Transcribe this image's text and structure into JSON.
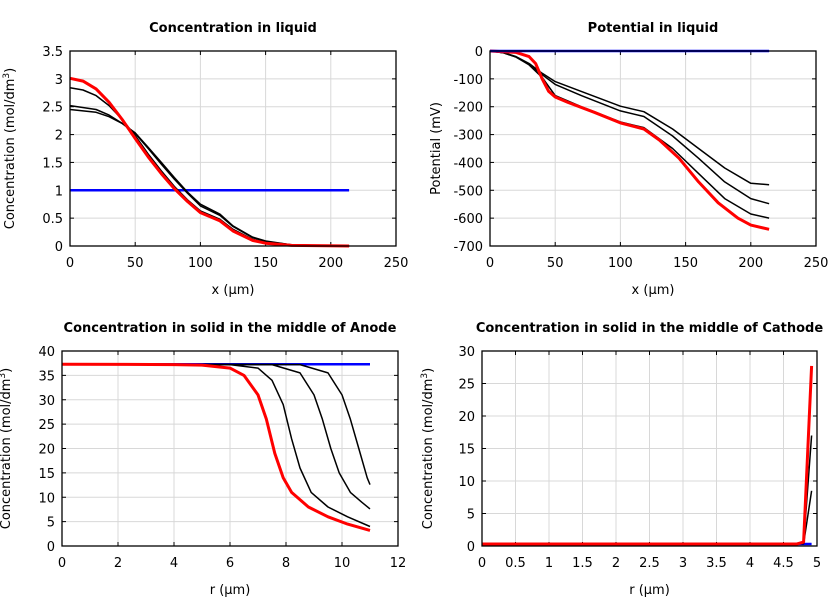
{
  "chart_data": [
    {
      "type": "line",
      "title": "Concentration in liquid",
      "xlabel": "x (µm)",
      "ylabel": "Concentration (mol/dm",
      "ylabel_sup": "3",
      "ylabel_end": ")",
      "xlim": [
        0,
        250
      ],
      "ylim": [
        0,
        3.5
      ],
      "xticks": [
        "0",
        "50",
        "100",
        "150",
        "200",
        "250"
      ],
      "yticks": [
        "0",
        "0.5",
        "1",
        "1.5",
        "2",
        "2.5",
        "3",
        "3.5"
      ],
      "grid": true,
      "series": [
        {
          "color": "#0000ff",
          "width": 2.5,
          "points": [
            [
              0,
              1
            ],
            [
              214,
              1
            ]
          ]
        },
        {
          "color": "#000000",
          "width": 1.5,
          "points": [
            [
              0,
              2.84
            ],
            [
              10,
              2.8
            ],
            [
              20,
              2.7
            ],
            [
              30,
              2.52
            ],
            [
              40,
              2.27
            ],
            [
              50,
              1.98
            ],
            [
              60,
              1.65
            ],
            [
              70,
              1.35
            ],
            [
              80,
              1.07
            ],
            [
              90,
              0.83
            ],
            [
              100,
              0.63
            ],
            [
              115,
              0.48
            ],
            [
              125,
              0.3
            ],
            [
              140,
              0.12
            ],
            [
              150,
              0.06
            ],
            [
              170,
              0.01
            ],
            [
              214,
              0
            ]
          ]
        },
        {
          "color": "#000000",
          "width": 1.5,
          "points": [
            [
              0,
              2.52
            ],
            [
              20,
              2.45
            ],
            [
              30,
              2.35
            ],
            [
              40,
              2.2
            ],
            [
              50,
              2.02
            ],
            [
              60,
              1.75
            ],
            [
              70,
              1.47
            ],
            [
              80,
              1.2
            ],
            [
              90,
              0.95
            ],
            [
              100,
              0.72
            ],
            [
              115,
              0.55
            ],
            [
              125,
              0.35
            ],
            [
              140,
              0.15
            ],
            [
              150,
              0.08
            ],
            [
              170,
              0.02
            ],
            [
              214,
              0
            ]
          ]
        },
        {
          "color": "#000000",
          "width": 1.5,
          "points": [
            [
              0,
              2.45
            ],
            [
              20,
              2.4
            ],
            [
              30,
              2.32
            ],
            [
              40,
              2.2
            ],
            [
              50,
              2.03
            ],
            [
              60,
              1.77
            ],
            [
              70,
              1.5
            ],
            [
              80,
              1.23
            ],
            [
              90,
              0.97
            ],
            [
              100,
              0.75
            ],
            [
              115,
              0.57
            ],
            [
              125,
              0.36
            ],
            [
              140,
              0.16
            ],
            [
              150,
              0.09
            ],
            [
              170,
              0.02
            ],
            [
              214,
              0
            ]
          ]
        },
        {
          "color": "#ff0000",
          "width": 3,
          "points": [
            [
              0,
              3.01
            ],
            [
              10,
              2.96
            ],
            [
              20,
              2.82
            ],
            [
              30,
              2.58
            ],
            [
              40,
              2.27
            ],
            [
              50,
              1.93
            ],
            [
              60,
              1.6
            ],
            [
              70,
              1.3
            ],
            [
              80,
              1.03
            ],
            [
              90,
              0.8
            ],
            [
              100,
              0.6
            ],
            [
              115,
              0.45
            ],
            [
              125,
              0.27
            ],
            [
              140,
              0.1
            ],
            [
              150,
              0.05
            ],
            [
              170,
              0.01
            ],
            [
              214,
              0
            ]
          ]
        }
      ]
    },
    {
      "type": "line",
      "title": "Potential in liquid",
      "xlabel": "x (µm)",
      "ylabel": "Potential (mV)",
      "xlim": [
        0,
        250
      ],
      "ylim": [
        -700,
        0
      ],
      "xticks": [
        "0",
        "50",
        "100",
        "150",
        "200",
        "250"
      ],
      "yticks": [
        "-700",
        "-600",
        "-500",
        "-400",
        "-300",
        "-200",
        "-100",
        "0"
      ],
      "grid": true,
      "series": [
        {
          "color": "#000000",
          "width": 1.5,
          "points": [
            [
              0,
              0
            ],
            [
              10,
              -5
            ],
            [
              20,
              -20
            ],
            [
              30,
              -45
            ],
            [
              40,
              -80
            ],
            [
              50,
              -110
            ],
            [
              70,
              -145
            ],
            [
              100,
              -198
            ],
            [
              118,
              -218
            ],
            [
              140,
              -280
            ],
            [
              160,
              -350
            ],
            [
              180,
              -420
            ],
            [
              200,
              -475
            ],
            [
              214,
              -480
            ]
          ]
        },
        {
          "color": "#000000",
          "width": 1.5,
          "points": [
            [
              0,
              0
            ],
            [
              10,
              -6
            ],
            [
              20,
              -22
            ],
            [
              30,
              -48
            ],
            [
              40,
              -85
            ],
            [
              50,
              -120
            ],
            [
              70,
              -160
            ],
            [
              100,
              -215
            ],
            [
              118,
              -235
            ],
            [
              140,
              -305
            ],
            [
              160,
              -385
            ],
            [
              180,
              -470
            ],
            [
              200,
              -530
            ],
            [
              214,
              -548
            ]
          ]
        },
        {
          "color": "#000000",
          "width": 1.5,
          "points": [
            [
              0,
              0
            ],
            [
              10,
              -6
            ],
            [
              20,
              -22
            ],
            [
              30,
              -50
            ],
            [
              40,
              -95
            ],
            [
              50,
              -160
            ],
            [
              70,
              -200
            ],
            [
              100,
              -255
            ],
            [
              118,
              -275
            ],
            [
              140,
              -350
            ],
            [
              160,
              -440
            ],
            [
              180,
              -530
            ],
            [
              200,
              -585
            ],
            [
              214,
              -600
            ]
          ]
        },
        {
          "color": "#ff0000",
          "width": 3,
          "points": [
            [
              0,
              0
            ],
            [
              20,
              -5
            ],
            [
              30,
              -20
            ],
            [
              35,
              -45
            ],
            [
              40,
              -100
            ],
            [
              45,
              -145
            ],
            [
              50,
              -165
            ],
            [
              60,
              -185
            ],
            [
              80,
              -220
            ],
            [
              100,
              -258
            ],
            [
              118,
              -280
            ],
            [
              130,
              -320
            ],
            [
              145,
              -385
            ],
            [
              160,
              -470
            ],
            [
              175,
              -545
            ],
            [
              190,
              -600
            ],
            [
              200,
              -625
            ],
            [
              214,
              -640
            ]
          ]
        },
        {
          "color": "#0000ff",
          "width": 2.5,
          "points": [
            [
              0,
              0
            ],
            [
              214,
              0
            ]
          ]
        }
      ]
    },
    {
      "type": "line",
      "title": "Concentration in solid in the middle of Anode",
      "xlabel": "r (µm)",
      "ylabel": "Concentration (mol/dm",
      "ylabel_sup": "3",
      "ylabel_end": ")",
      "xlim": [
        0,
        12
      ],
      "ylim": [
        0,
        40
      ],
      "xticks": [
        "0",
        "2",
        "4",
        "6",
        "8",
        "10",
        "12"
      ],
      "yticks": [
        "0",
        "5",
        "10",
        "15",
        "20",
        "25",
        "30",
        "35",
        "40"
      ],
      "grid": true,
      "series": [
        {
          "color": "#0000ff",
          "width": 2.5,
          "points": [
            [
              0,
              37.3
            ],
            [
              11,
              37.3
            ]
          ]
        },
        {
          "color": "#000000",
          "width": 1.5,
          "points": [
            [
              0,
              37.3
            ],
            [
              6,
              37.2
            ],
            [
              7,
              36.5
            ],
            [
              7.5,
              34
            ],
            [
              7.9,
              29
            ],
            [
              8.2,
              22
            ],
            [
              8.5,
              16
            ],
            [
              8.9,
              11
            ],
            [
              9.5,
              8
            ],
            [
              10.2,
              6
            ],
            [
              11,
              4
            ]
          ]
        },
        {
          "color": "#000000",
          "width": 1.5,
          "points": [
            [
              0,
              37.3
            ],
            [
              7.5,
              37.2
            ],
            [
              8.5,
              35.5
            ],
            [
              9,
              31
            ],
            [
              9.3,
              26
            ],
            [
              9.6,
              20
            ],
            [
              9.9,
              15
            ],
            [
              10.3,
              11
            ],
            [
              10.7,
              9
            ],
            [
              11,
              7.6
            ]
          ]
        },
        {
          "color": "#000000",
          "width": 1.5,
          "points": [
            [
              0,
              37.3
            ],
            [
              8.5,
              37.2
            ],
            [
              9.5,
              35.5
            ],
            [
              10,
              31
            ],
            [
              10.3,
              26
            ],
            [
              10.6,
              20
            ],
            [
              10.9,
              14
            ],
            [
              11,
              12.6
            ]
          ]
        },
        {
          "color": "#ff0000",
          "width": 3,
          "points": [
            [
              0,
              37.3
            ],
            [
              4,
              37.2
            ],
            [
              5,
              37.1
            ],
            [
              6,
              36.5
            ],
            [
              6.5,
              35
            ],
            [
              7,
              31
            ],
            [
              7.3,
              26
            ],
            [
              7.6,
              19
            ],
            [
              7.9,
              14
            ],
            [
              8.2,
              11
            ],
            [
              8.8,
              8
            ],
            [
              9.5,
              6
            ],
            [
              10.2,
              4.5
            ],
            [
              11,
              3.2
            ]
          ]
        }
      ]
    },
    {
      "type": "line",
      "title": "Concentration in solid in the middle of Cathode",
      "xlabel": "r (µm)",
      "ylabel": "Concentration (mol/dm",
      "ylabel_sup": "3",
      "ylabel_end": ")",
      "xlim": [
        0,
        5
      ],
      "ylim": [
        0,
        30
      ],
      "xticks": [
        "0",
        "0.5",
        "1",
        "1.5",
        "2",
        "2.5",
        "3",
        "3.5",
        "4",
        "4.5",
        "5"
      ],
      "yticks": [
        "0",
        "5",
        "10",
        "15",
        "20",
        "25",
        "30"
      ],
      "grid": true,
      "series": [
        {
          "color": "#0000ff",
          "width": 2.5,
          "points": [
            [
              0,
              0.3
            ],
            [
              4.92,
              0.3
            ]
          ]
        },
        {
          "color": "#000000",
          "width": 1.5,
          "points": [
            [
              0,
              0.3
            ],
            [
              4.8,
              0.35
            ],
            [
              4.92,
              8.5
            ]
          ]
        },
        {
          "color": "#000000",
          "width": 1.5,
          "points": [
            [
              0,
              0.3
            ],
            [
              4.8,
              0.4
            ],
            [
              4.92,
              17
            ]
          ]
        },
        {
          "color": "#ff0000",
          "width": 3,
          "points": [
            [
              0,
              0.3
            ],
            [
              4.7,
              0.3
            ],
            [
              4.8,
              0.6
            ],
            [
              4.92,
              27.7
            ]
          ]
        }
      ]
    }
  ]
}
